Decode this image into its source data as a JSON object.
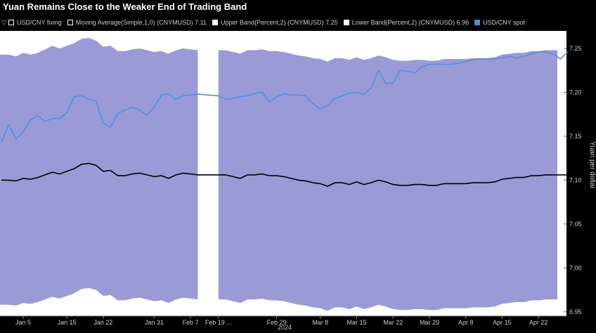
{
  "chart_data": {
    "type": "line",
    "title": "Yuan Remains Close to the Weaker End of Trading Band",
    "ylabel": "Yuan per dollar",
    "year_label": "2024",
    "ylim": [
      6.945,
      7.27
    ],
    "yticks": [
      "6.95",
      "7.00",
      "7.05",
      "7.10",
      "7.15",
      "7.20",
      "7.25"
    ],
    "x_dates": [
      "Jan 2",
      "Jan 3",
      "Jan 4",
      "Jan 5",
      "Jan 8",
      "Jan 9",
      "Jan 10",
      "Jan 11",
      "Jan 12",
      "Jan 15",
      "Jan 16",
      "Jan 17",
      "Jan 18",
      "Jan 19",
      "Jan 22",
      "Jan 23",
      "Jan 24",
      "Jan 25",
      "Jan 26",
      "Jan 29",
      "Jan 30",
      "Jan 31",
      "Feb 1",
      "Feb 2",
      "Feb 5",
      "Feb 6",
      "Feb 7",
      "Feb 8",
      "Feb 19",
      "Feb 20",
      "Feb 21",
      "Feb 22",
      "Feb 23",
      "Feb 26",
      "Feb 27",
      "Feb 28",
      "Feb 29",
      "Mar 1",
      "Mar 4",
      "Mar 5",
      "Mar 6",
      "Mar 7",
      "Mar 8",
      "Mar 11",
      "Mar 12",
      "Mar 13",
      "Mar 14",
      "Mar 15",
      "Mar 18",
      "Mar 19",
      "Mar 20",
      "Mar 21",
      "Mar 22",
      "Mar 25",
      "Mar 26",
      "Mar 27",
      "Mar 28",
      "Mar 29",
      "Apr 1",
      "Apr 2",
      "Apr 3",
      "Apr 5",
      "Apr 8",
      "Apr 9",
      "Apr 10",
      "Apr 11",
      "Apr 12",
      "Apr 15",
      "Apr 16",
      "Apr 17",
      "Apr 18",
      "Apr 19",
      "Apr 22",
      "Apr 23",
      "Apr 24",
      "Apr 25",
      "Apr 26"
    ],
    "x_ticks": [
      {
        "label": "Jan 5",
        "date": "Jan 5"
      },
      {
        "label": "Jan 15",
        "date": "Jan 15"
      },
      {
        "label": "Jan 22",
        "date": "Jan 22"
      },
      {
        "label": "Jan 31",
        "date": "Jan 31"
      },
      {
        "label": "Feb 7",
        "date": "Feb 7"
      },
      {
        "label": "Feb 19 ...",
        "date": "Feb 19"
      },
      {
        "label": "Feb 29",
        "date": "Feb 29"
      },
      {
        "label": "Mar 8",
        "date": "Mar 8"
      },
      {
        "label": "Mar 15",
        "date": "Mar 15"
      },
      {
        "label": "Mar 22",
        "date": "Mar 22"
      },
      {
        "label": "Mar 29",
        "date": "Mar 29"
      },
      {
        "label": "Apr 8",
        "date": "Apr 8"
      },
      {
        "label": "Apr 15",
        "date": "Apr 15"
      },
      {
        "label": "Apr 22",
        "date": "Apr 22"
      }
    ],
    "legend": [
      {
        "prefix": "▽",
        "label": "USD/CNY fixing",
        "color": "#000000"
      },
      {
        "label": "Moving Average(Simple,1,0) (CNYMUSD)  7.11",
        "color": "#000000"
      },
      {
        "label": "Upper Band(Percent,2) (CNYMUSD)  7.25",
        "color": "#ffffff"
      },
      {
        "label": "Lower Band(Percent,2) (CNYMUSD)  6.96",
        "color": "#ffffff"
      },
      {
        "label": "USD/CNY spot",
        "color": "#4f8fe0"
      }
    ],
    "colors": {
      "band": "#9a9ad6",
      "fixing": "#000000",
      "spot": "#4f8fe0",
      "background": "#ffffff"
    },
    "series": [
      {
        "name": "USD/CNY spot",
        "values": [
          7.143,
          7.163,
          7.147,
          7.155,
          7.169,
          7.173,
          7.167,
          7.17,
          7.17,
          7.177,
          7.195,
          7.196,
          7.192,
          7.19,
          7.165,
          7.16,
          7.176,
          7.18,
          7.183,
          7.18,
          7.174,
          7.183,
          7.197,
          7.198,
          7.192,
          7.196,
          7.197,
          7.198,
          7.196,
          7.192,
          7.193,
          7.195,
          7.196,
          7.199,
          7.2,
          7.189,
          7.195,
          7.198,
          7.197,
          7.197,
          7.196,
          7.187,
          7.181,
          7.185,
          7.193,
          7.196,
          7.199,
          7.2,
          7.198,
          7.205,
          7.225,
          7.21,
          7.211,
          7.225,
          7.224,
          7.222,
          7.229,
          7.232,
          7.232,
          7.232,
          7.232,
          7.233,
          7.235,
          7.237,
          7.238,
          7.238,
          7.238,
          7.239,
          7.241,
          7.239,
          7.241,
          7.244,
          7.246,
          7.246,
          7.244,
          7.238,
          7.246
        ]
      },
      {
        "name": "USD/CNY fixing",
        "values": [
          7.1,
          7.1,
          7.099,
          7.102,
          7.101,
          7.103,
          7.106,
          7.109,
          7.107,
          7.11,
          7.113,
          7.118,
          7.119,
          7.117,
          7.11,
          7.111,
          7.105,
          7.105,
          7.107,
          7.108,
          7.106,
          7.104,
          7.105,
          7.102,
          7.106,
          7.108,
          7.107,
          7.106,
          7.106,
          7.106,
          7.104,
          7.102,
          7.106,
          7.106,
          7.107,
          7.105,
          7.105,
          7.104,
          7.102,
          7.1,
          7.099,
          7.097,
          7.096,
          7.093,
          7.097,
          7.097,
          7.095,
          7.098,
          7.095,
          7.097,
          7.1,
          7.098,
          7.095,
          7.094,
          7.094,
          7.095,
          7.095,
          7.094,
          7.094,
          7.096,
          7.096,
          7.096,
          7.096,
          7.097,
          7.097,
          7.097,
          7.098,
          7.101,
          7.102,
          7.103,
          7.103,
          7.105,
          7.105,
          7.106,
          7.106,
          7.106,
          7.106
        ]
      },
      {
        "name": "Upper Band(Percent,2) (CNYMUSD)",
        "values": [
          7.243,
          7.243,
          7.241,
          7.245,
          7.243,
          7.245,
          7.249,
          7.253,
          7.25,
          7.253,
          7.256,
          7.261,
          7.262,
          7.259,
          7.252,
          7.253,
          7.247,
          7.247,
          7.249,
          7.25,
          7.248,
          7.246,
          7.247,
          7.244,
          7.248,
          7.25,
          7.249,
          7.248,
          7.248,
          7.248,
          7.246,
          7.244,
          7.248,
          7.248,
          7.249,
          7.247,
          7.247,
          7.246,
          7.244,
          7.242,
          7.241,
          7.239,
          7.238,
          7.235,
          7.239,
          7.239,
          7.237,
          7.24,
          7.237,
          7.239,
          7.242,
          7.24,
          7.237,
          7.236,
          7.236,
          7.237,
          7.237,
          7.236,
          7.236,
          7.238,
          7.238,
          7.238,
          7.238,
          7.239,
          7.239,
          7.239,
          7.24,
          7.243,
          7.244,
          7.245,
          7.245,
          7.247,
          7.247,
          7.248,
          7.248,
          7.248,
          7.248
        ]
      },
      {
        "name": "Lower Band(Percent,2) (CNYMUSD)",
        "values": [
          6.958,
          6.958,
          6.957,
          6.96,
          6.959,
          6.961,
          6.964,
          6.967,
          6.965,
          6.968,
          6.971,
          6.976,
          6.977,
          6.975,
          6.968,
          6.969,
          6.963,
          6.963,
          6.965,
          6.966,
          6.964,
          6.962,
          6.963,
          6.96,
          6.964,
          6.966,
          6.965,
          6.964,
          6.964,
          6.964,
          6.962,
          6.96,
          6.964,
          6.964,
          6.965,
          6.963,
          6.963,
          6.962,
          6.96,
          6.958,
          6.957,
          6.955,
          6.954,
          6.951,
          6.955,
          6.955,
          6.953,
          6.956,
          6.953,
          6.955,
          6.958,
          6.956,
          6.953,
          6.952,
          6.952,
          6.953,
          6.953,
          6.952,
          6.952,
          6.954,
          6.954,
          6.954,
          6.954,
          6.955,
          6.955,
          6.955,
          6.956,
          6.959,
          6.96,
          6.961,
          6.961,
          6.963,
          6.963,
          6.964,
          6.964,
          6.964,
          6.964
        ]
      }
    ]
  }
}
